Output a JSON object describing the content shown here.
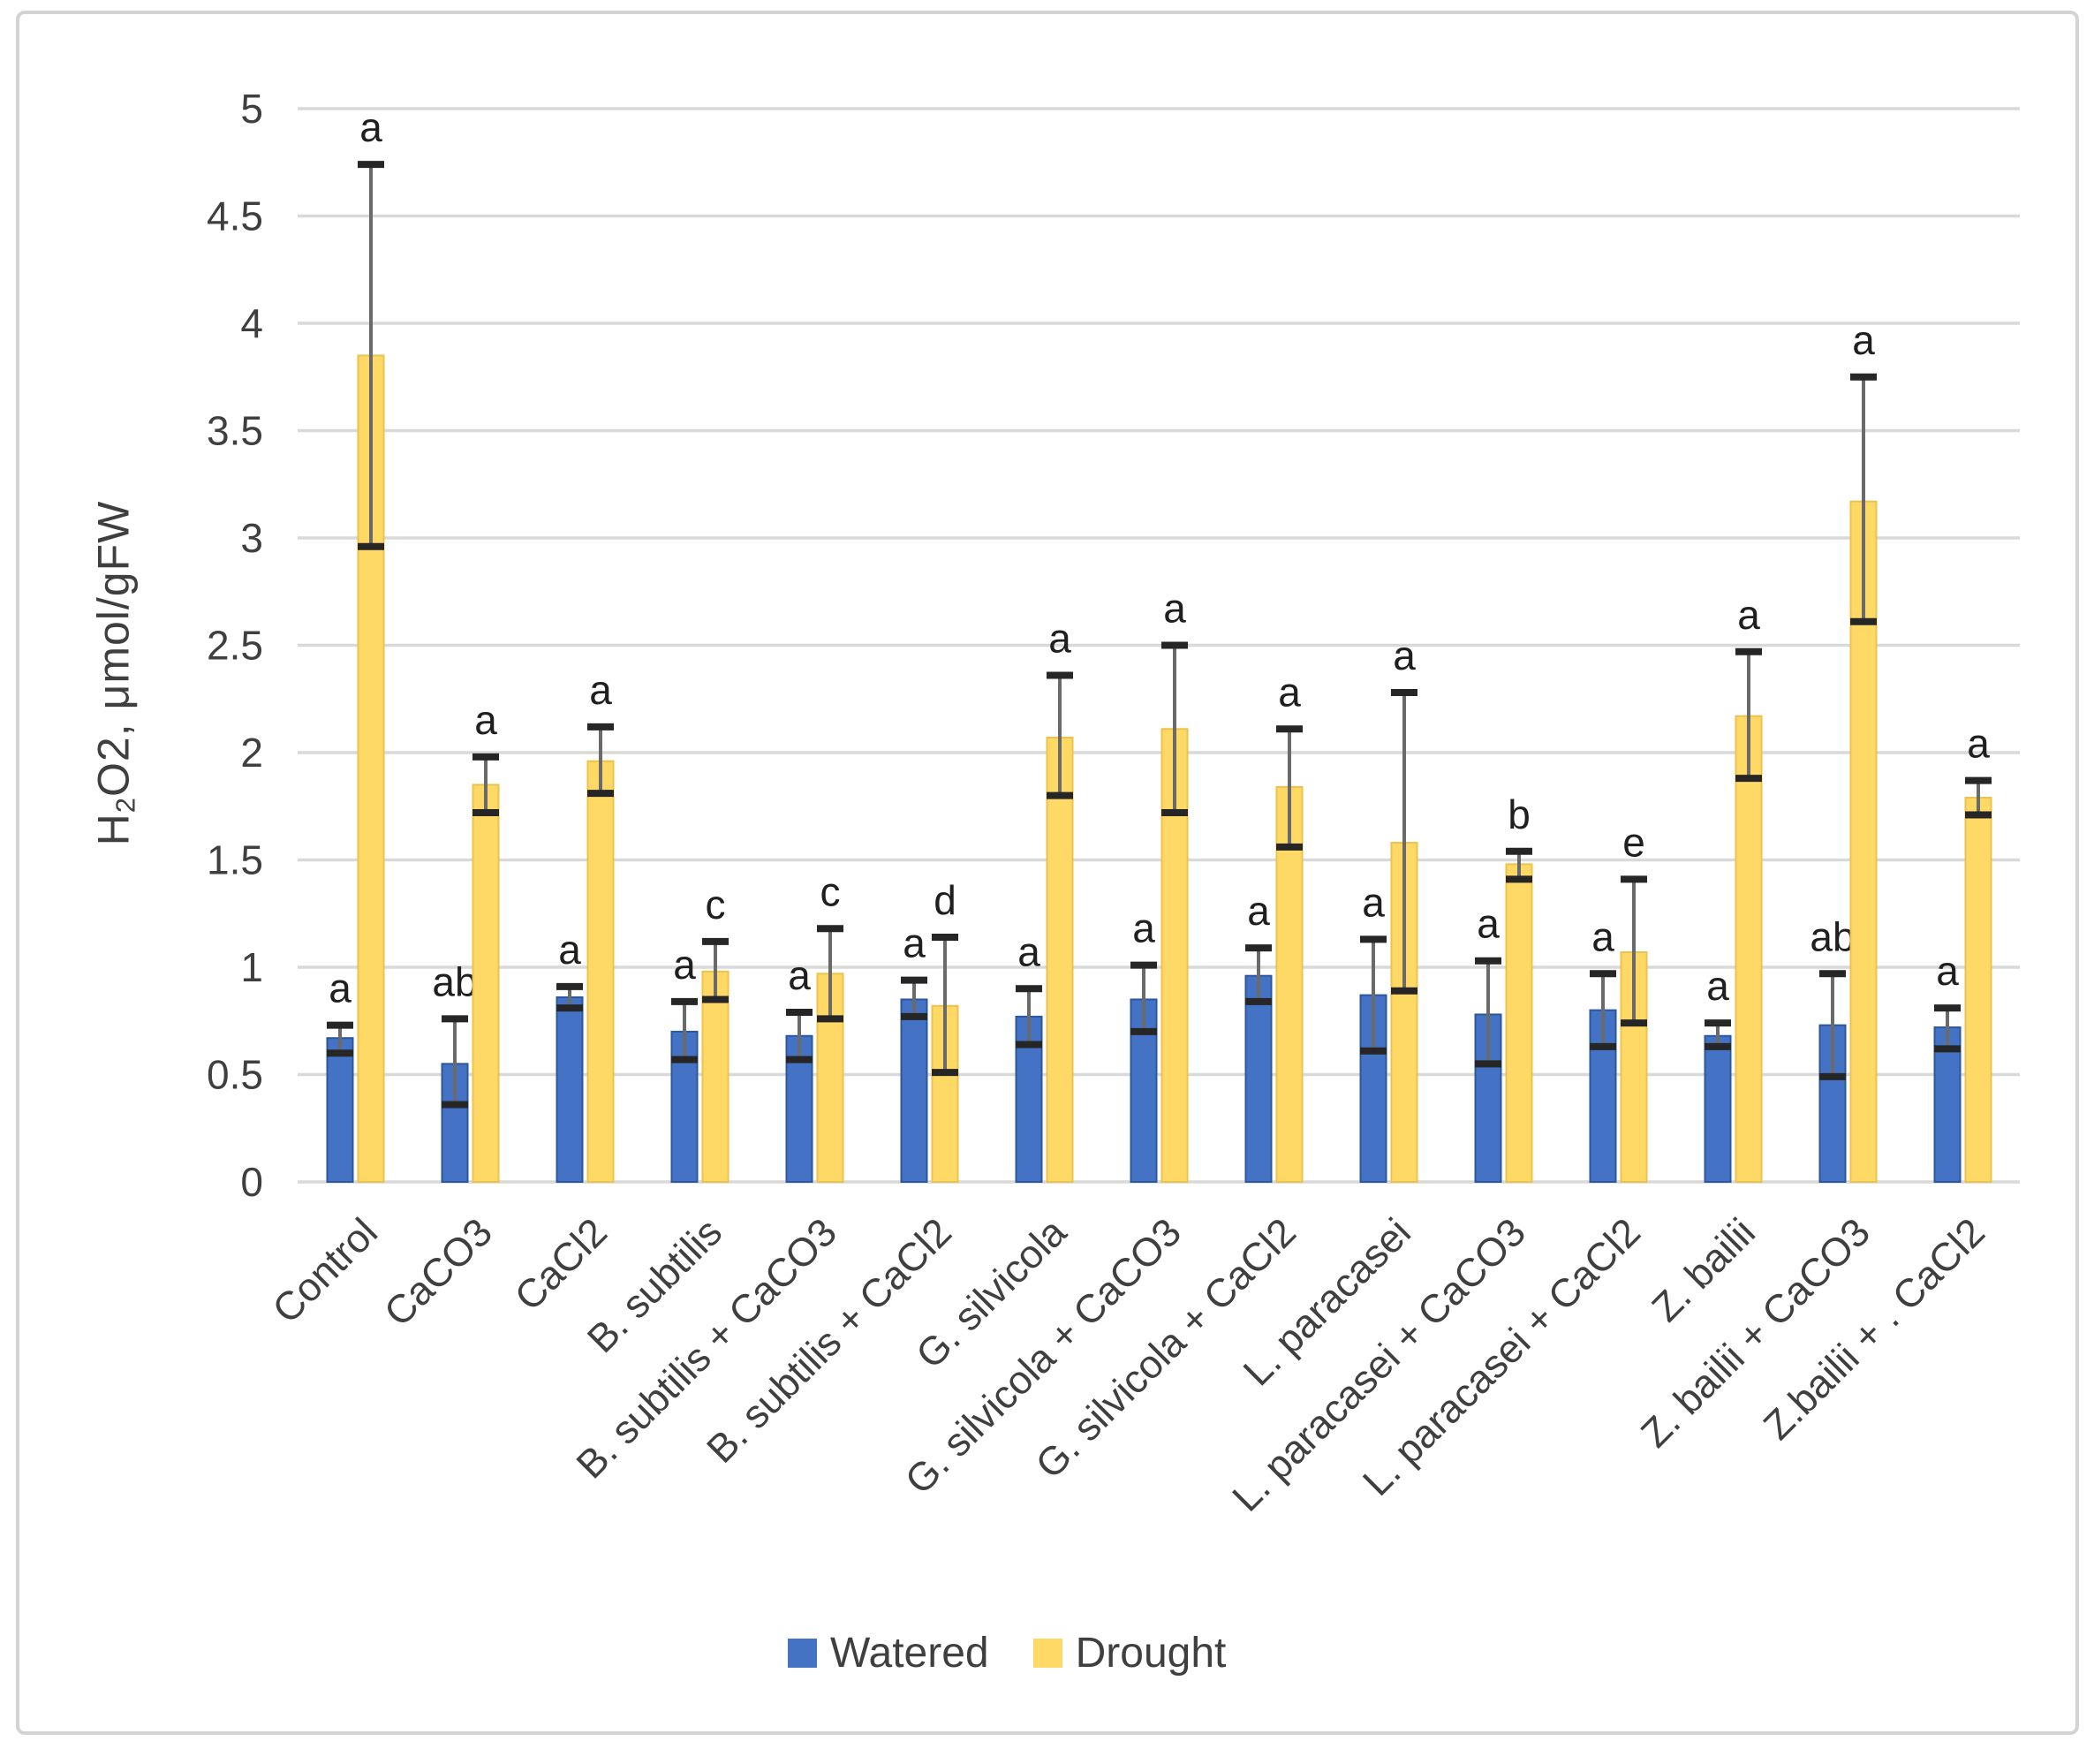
{
  "figure": {
    "background": "#ffffff",
    "frame_border_color": "#d3d3d3"
  },
  "chart_data": {
    "type": "bar",
    "title": "",
    "ylabel": "H2O2, μmol/gFW",
    "ylabel_parts": {
      "base": "H",
      "sub": "2",
      "rest": "O2, μmol/gFW"
    },
    "xlabel": "",
    "ylim": [
      0,
      5
    ],
    "ytick_step": 0.5,
    "yticks": [
      "0",
      "0.5",
      "1",
      "1.5",
      "2",
      "2.5",
      "3",
      "3.5",
      "4",
      "4.5",
      "5"
    ],
    "grid": true,
    "legend_position": "bottom",
    "gridline_color": "#d9d9d9",
    "axis_text_color": "#3f3f3f",
    "letter_color": "#1f1f1f",
    "error_bar_color": "#6a6a6a",
    "error_cap_color": "#262626",
    "categories": [
      "Control",
      "CaCO3",
      "CaCl2",
      "B. subtilis",
      "B. subtilis + CaCO3",
      "B. subtilis + CaCl2",
      "G. silvicola",
      "G. silvicola + CaCO3",
      "G. silvicola + CaCl2",
      "L. paracasei",
      "L. paracasei + CaCO3",
      "L. paracasei + CaCl2",
      "Z. bailii",
      "Z. bailii + CaCO3",
      "Z.bailii + . CaCl2"
    ],
    "series": [
      {
        "name": "Watered",
        "color": "#4472C4",
        "edge": "#2b579f",
        "values": [
          0.67,
          0.55,
          0.86,
          0.7,
          0.68,
          0.85,
          0.77,
          0.85,
          0.96,
          0.87,
          0.78,
          0.8,
          0.68,
          0.73,
          0.72
        ],
        "err_low": [
          0.6,
          0.36,
          0.81,
          0.57,
          0.57,
          0.77,
          0.64,
          0.7,
          0.84,
          0.61,
          0.55,
          0.63,
          0.63,
          0.49,
          0.62
        ],
        "err_high": [
          0.73,
          0.76,
          0.91,
          0.84,
          0.79,
          0.94,
          0.9,
          1.01,
          1.09,
          1.13,
          1.03,
          0.97,
          0.74,
          0.97,
          0.81
        ],
        "letters": [
          "a",
          "ab",
          "a",
          "a",
          "a",
          "a",
          "a",
          "a",
          "a",
          "a",
          "a",
          "a",
          "a",
          "ab",
          "a"
        ]
      },
      {
        "name": "Drought",
        "color": "#FFD966",
        "edge": "#edc24c",
        "values": [
          3.85,
          1.85,
          1.96,
          0.98,
          0.97,
          0.82,
          2.07,
          2.11,
          1.84,
          1.58,
          1.48,
          1.07,
          2.17,
          3.17,
          1.79
        ],
        "err_low": [
          2.96,
          1.72,
          1.81,
          0.85,
          0.76,
          0.51,
          1.8,
          1.72,
          1.56,
          0.89,
          1.41,
          0.74,
          1.88,
          2.61,
          1.71
        ],
        "err_high": [
          4.74,
          1.98,
          2.12,
          1.12,
          1.18,
          1.14,
          2.36,
          2.5,
          2.11,
          2.28,
          1.54,
          1.41,
          2.47,
          3.75,
          1.87
        ],
        "letters": [
          "a",
          "a",
          "a",
          "c",
          "c",
          "d",
          "a",
          "a",
          "a",
          "a",
          "b",
          "e",
          "a",
          "a",
          "a"
        ]
      }
    ]
  }
}
